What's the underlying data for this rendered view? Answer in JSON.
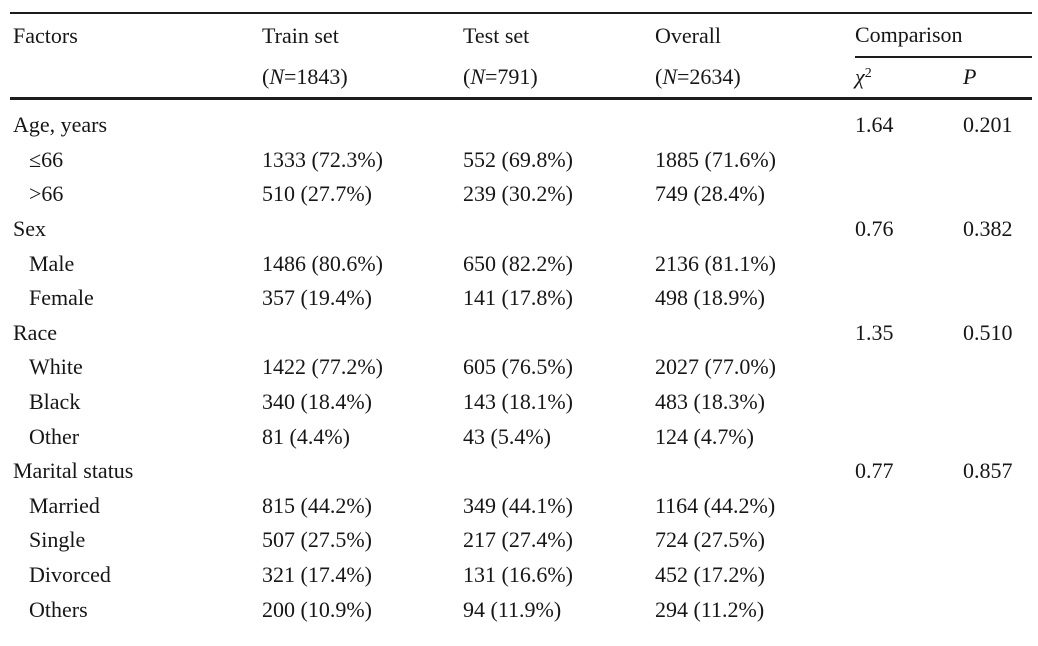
{
  "table": {
    "header": {
      "factors": "Factors",
      "groups": [
        {
          "label": "Train set",
          "paren": "(",
          "n": "N",
          "rest": "=1843)"
        },
        {
          "label": "Test set",
          "paren": "(",
          "n": "N",
          "rest": "=791)"
        },
        {
          "label": "Overall",
          "paren": "(",
          "n": "N",
          "rest": "=2634)"
        }
      ],
      "comparison": "Comparison",
      "chi": "χ",
      "chi_sup": "2",
      "p": "P"
    },
    "rows": [
      {
        "factor": "Age, years",
        "train": "",
        "test": "",
        "overall": "",
        "chi2": "1.64",
        "p": "0.201"
      },
      {
        "factor": "≤66",
        "train": "1333 (72.3%)",
        "test": "552 (69.8%)",
        "overall": "1885 (71.6%)",
        "chi2": "",
        "p": ""
      },
      {
        "factor": ">66",
        "train": "510 (27.7%)",
        "test": "239 (30.2%)",
        "overall": "749 (28.4%)",
        "chi2": "",
        "p": ""
      },
      {
        "factor": "Sex",
        "train": "",
        "test": "",
        "overall": "",
        "chi2": "0.76",
        "p": "0.382"
      },
      {
        "factor": "Male",
        "train": "1486 (80.6%)",
        "test": "650 (82.2%)",
        "overall": "2136 (81.1%)",
        "chi2": "",
        "p": ""
      },
      {
        "factor": "Female",
        "train": "357 (19.4%)",
        "test": "141 (17.8%)",
        "overall": "498 (18.9%)",
        "chi2": "",
        "p": ""
      },
      {
        "factor": "Race",
        "train": "",
        "test": "",
        "overall": "",
        "chi2": "1.35",
        "p": "0.510"
      },
      {
        "factor": "White",
        "train": "1422 (77.2%)",
        "test": "605 (76.5%)",
        "overall": "2027 (77.0%)",
        "chi2": "",
        "p": ""
      },
      {
        "factor": "Black",
        "train": "340 (18.4%)",
        "test": "143 (18.1%)",
        "overall": "483 (18.3%)",
        "chi2": "",
        "p": ""
      },
      {
        "factor": "Other",
        "train": "81 (4.4%)",
        "test": "43 (5.4%)",
        "overall": "124 (4.7%)",
        "chi2": "",
        "p": ""
      },
      {
        "factor": "Marital status",
        "train": "",
        "test": "",
        "overall": "",
        "chi2": "0.77",
        "p": "0.857"
      },
      {
        "factor": "Married",
        "train": "815 (44.2%)",
        "test": "349 (44.1%)",
        "overall": "1164 (44.2%)",
        "chi2": "",
        "p": ""
      },
      {
        "factor": "Single",
        "train": "507 (27.5%)",
        "test": "217 (27.4%)",
        "overall": "724 (27.5%)",
        "chi2": "",
        "p": ""
      },
      {
        "factor": "Divorced",
        "train": "321 (17.4%)",
        "test": "131 (16.6%)",
        "overall": "452 (17.2%)",
        "chi2": "",
        "p": ""
      },
      {
        "factor": "Others",
        "train": "200 (10.9%)",
        "test": "94 (11.9%)",
        "overall": "294 (11.2%)",
        "chi2": "",
        "p": ""
      }
    ]
  }
}
